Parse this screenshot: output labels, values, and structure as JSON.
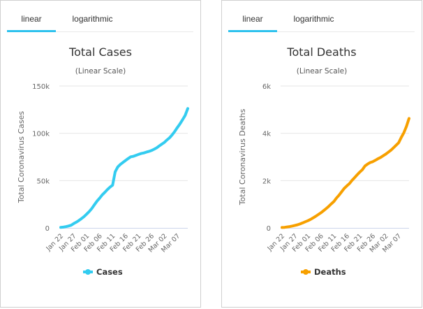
{
  "panels": [
    {
      "tabs": [
        {
          "label": "linear",
          "active": true
        },
        {
          "label": "logarithmic",
          "active": false
        }
      ],
      "chart": {
        "type": "line",
        "title": "Total Cases",
        "subtitle": "(Linear Scale)",
        "ylabel": "Total Coronavirus Cases",
        "xlabel": "",
        "ylim": [
          0,
          150000
        ],
        "yticks": [
          0,
          50000,
          100000,
          150000
        ],
        "ytick_labels": [
          "0",
          "50k",
          "100k",
          "150k"
        ],
        "xtick_labels": [
          "Jan 22",
          "Jan 27",
          "Feb 01",
          "Feb 06",
          "Feb 11",
          "Feb 16",
          "Feb 21",
          "Feb 26",
          "Mar 02",
          "Mar 07"
        ],
        "legend": {
          "position": "bottom",
          "entries": [
            "Cases"
          ]
        },
        "grid": true,
        "color": "#33ccf0",
        "series": [
          {
            "name": "Cases",
            "values": [
              580,
              845,
              1317,
              2015,
              2800,
              4581,
              6058,
              7813,
              9823,
              11950,
              14553,
              17391,
              20630,
              24545,
              28266,
              31439,
              34876,
              37552,
              40553,
              43099,
              45134,
              59287,
              64438,
              67100,
              69197,
              71329,
              73332,
              75184,
              75700,
              76677,
              77673,
              78651,
              79205,
              80087,
              80828,
              81820,
              83112,
              84615,
              86604,
              88585,
              90443,
              93016,
              95314,
              98425,
              102050,
              106099,
              109991,
              114381,
              118948,
              126214
            ]
          }
        ]
      }
    },
    {
      "tabs": [
        {
          "label": "linear",
          "active": true
        },
        {
          "label": "logarithmic",
          "active": false
        }
      ],
      "chart": {
        "type": "line",
        "title": "Total Deaths",
        "subtitle": "(Linear Scale)",
        "ylabel": "Total Coronavirus Deaths",
        "xlabel": "",
        "ylim": [
          0,
          6000
        ],
        "yticks": [
          0,
          2000,
          4000,
          6000
        ],
        "ytick_labels": [
          "0",
          "2k",
          "4k",
          "6k"
        ],
        "xtick_labels": [
          "Jan 22",
          "Jan 27",
          "Feb 01",
          "Feb 06",
          "Feb 11",
          "Feb 16",
          "Feb 21",
          "Feb 26",
          "Mar 02",
          "Mar 07"
        ],
        "legend": {
          "position": "bottom",
          "entries": [
            "Deaths"
          ]
        },
        "grid": true,
        "color": "#f7a000",
        "series": [
          {
            "name": "Deaths",
            "values": [
              17,
              25,
              41,
              56,
              80,
              106,
              132,
              170,
              213,
              259,
              304,
              362,
              426,
              492,
              565,
              638,
              724,
              813,
              910,
              1018,
              1115,
              1261,
              1383,
              1526,
              1669,
              1775,
              1873,
              2009,
              2126,
              2247,
              2360,
              2460,
              2618,
              2699,
              2763,
              2800,
              2858,
              2923,
              2977,
              3050,
              3117,
              3202,
              3285,
              3387,
              3494,
              3599,
              3827,
              4025,
              4296,
              4628
            ]
          }
        ]
      }
    }
  ]
}
